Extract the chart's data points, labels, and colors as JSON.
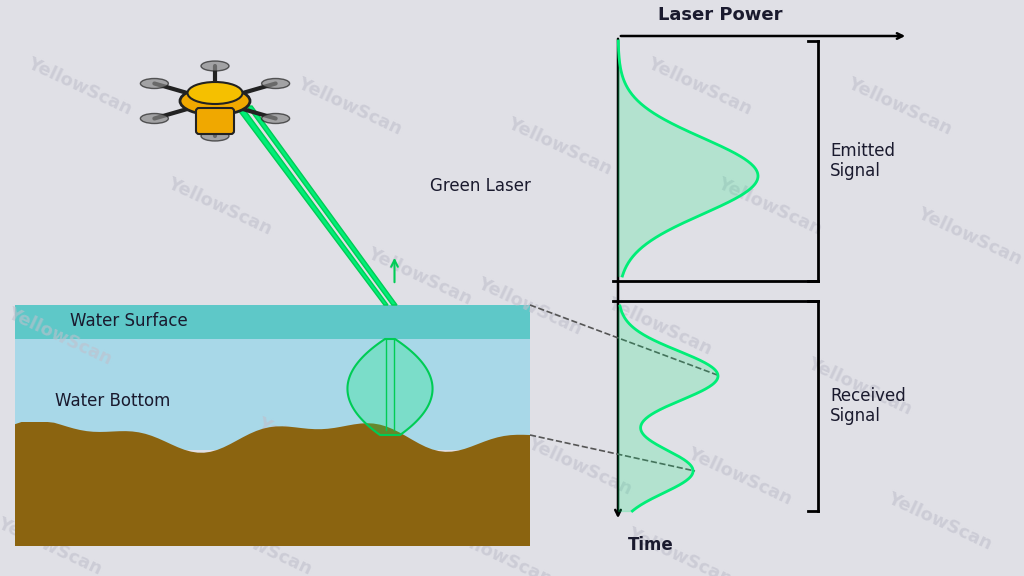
{
  "bg_color": "#e0e0e6",
  "water_surface_color": "#5ec8c8",
  "water_body_color": "#a8d8e8",
  "water_bottom_color": "#8B6410",
  "laser_green": "#00ee77",
  "laser_green_fill": "#00ee7744",
  "laser_outline": "#00cc55",
  "text_color": "#1a1a2e",
  "watermark_color": "#c0c0cc",
  "title": "Laser Power",
  "emitted_label": "Emitted\nSignal",
  "received_label": "Received\nSignal",
  "time_label": "Time",
  "green_laser_label": "Green Laser",
  "water_surface_label": "Water Surface",
  "water_bottom_label": "Water Bottom",
  "yellowscan_text": "YellowScan"
}
